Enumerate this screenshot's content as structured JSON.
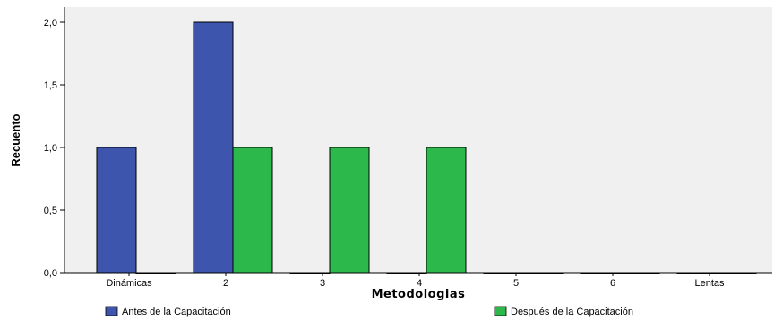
{
  "chart_data": {
    "type": "bar",
    "title": "",
    "xlabel": "Metodologias",
    "ylabel": "Recuento",
    "categories": [
      "Dinámicas",
      "2",
      "3",
      "4",
      "5",
      "6",
      "Lentas"
    ],
    "series": [
      {
        "name": "Antes de la Capacitación",
        "color": "#3d55ad",
        "values": [
          1,
          2,
          0,
          0,
          0,
          0,
          0
        ]
      },
      {
        "name": "Después de la Capacitación",
        "color": "#2db84b",
        "values": [
          0,
          1,
          1,
          1,
          0,
          0,
          0
        ]
      }
    ],
    "ylim": [
      0,
      2.0
    ],
    "yticks": [
      "0,0",
      "0,5",
      "1,0",
      "1,5",
      "2,0"
    ],
    "ytick_values": [
      0,
      0.5,
      1.0,
      1.5,
      2.0
    ],
    "grid": false,
    "plot_background": "#f0f0f0",
    "legend_position": "bottom"
  }
}
